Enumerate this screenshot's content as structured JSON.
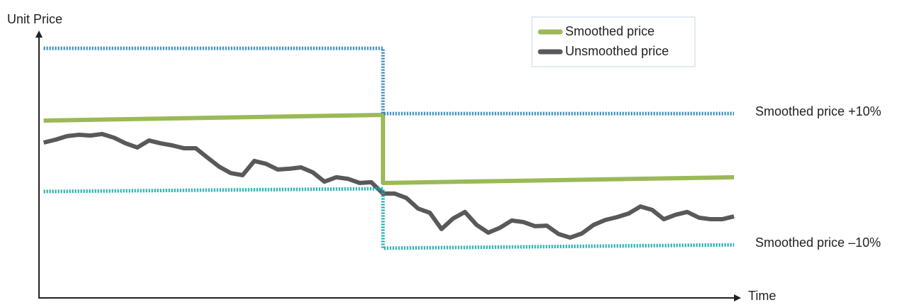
{
  "chart_data": {
    "type": "line",
    "y_label": "Unit Price",
    "x_label": "Time",
    "xlim": [
      -0.4,
      59.3
    ],
    "ylim": [
      0,
      100
    ],
    "legend": "top-right",
    "series": [
      {
        "name": "Smoothed price",
        "color": "#9bb957",
        "style": "solid",
        "x": [
          0,
          29,
          29,
          59
        ],
        "values": [
          68.5,
          70.7,
          44.4,
          46.6
        ]
      },
      {
        "name": "Unsmoothed price",
        "color": "#59585a",
        "style": "solid",
        "x": [
          0,
          1,
          2,
          3,
          4,
          5,
          6,
          7,
          8,
          9,
          10,
          11,
          12,
          13,
          14,
          15,
          16,
          17,
          18,
          19,
          20,
          21,
          22,
          23,
          24,
          25,
          26,
          27,
          28,
          29,
          30,
          31,
          32,
          33,
          34,
          35,
          36,
          37,
          38,
          39,
          40,
          41,
          42,
          43,
          44,
          45,
          46,
          47,
          48,
          49,
          50,
          51,
          52,
          53,
          54,
          55,
          56,
          57,
          58,
          59
        ],
        "values": [
          60.0,
          61.1,
          62.5,
          63.0,
          62.7,
          63.3,
          61.9,
          59.7,
          58.1,
          60.8,
          59.7,
          58.9,
          57.8,
          57.8,
          54.2,
          50.7,
          48.2,
          47.4,
          52.9,
          51.8,
          49.6,
          49.9,
          50.4,
          48.5,
          44.9,
          46.6,
          46.0,
          44.4,
          44.7,
          40.3,
          40.3,
          38.6,
          34.5,
          32.9,
          26.6,
          30.7,
          33.2,
          28.2,
          25.2,
          27.1,
          29.9,
          29.3,
          27.7,
          27.9,
          24.7,
          23.3,
          24.9,
          28.2,
          30.1,
          31.2,
          32.6,
          35.3,
          34.0,
          30.4,
          32.1,
          33.2,
          31.0,
          30.4,
          30.4,
          31.5
        ]
      },
      {
        "name": "Smoothed price +10%",
        "color": "#2f86b9",
        "style": "dotted",
        "x": [
          0,
          29,
          29,
          59
        ],
        "values": [
          96.4,
          96.4,
          71.2,
          71.2
        ]
      },
      {
        "name": "Smoothed price –10%",
        "color": "#1aabaa",
        "style": "dotted",
        "x": [
          0,
          29,
          29,
          59
        ],
        "values": [
          41.1,
          42.2,
          19.2,
          20.5
        ]
      }
    ]
  }
}
